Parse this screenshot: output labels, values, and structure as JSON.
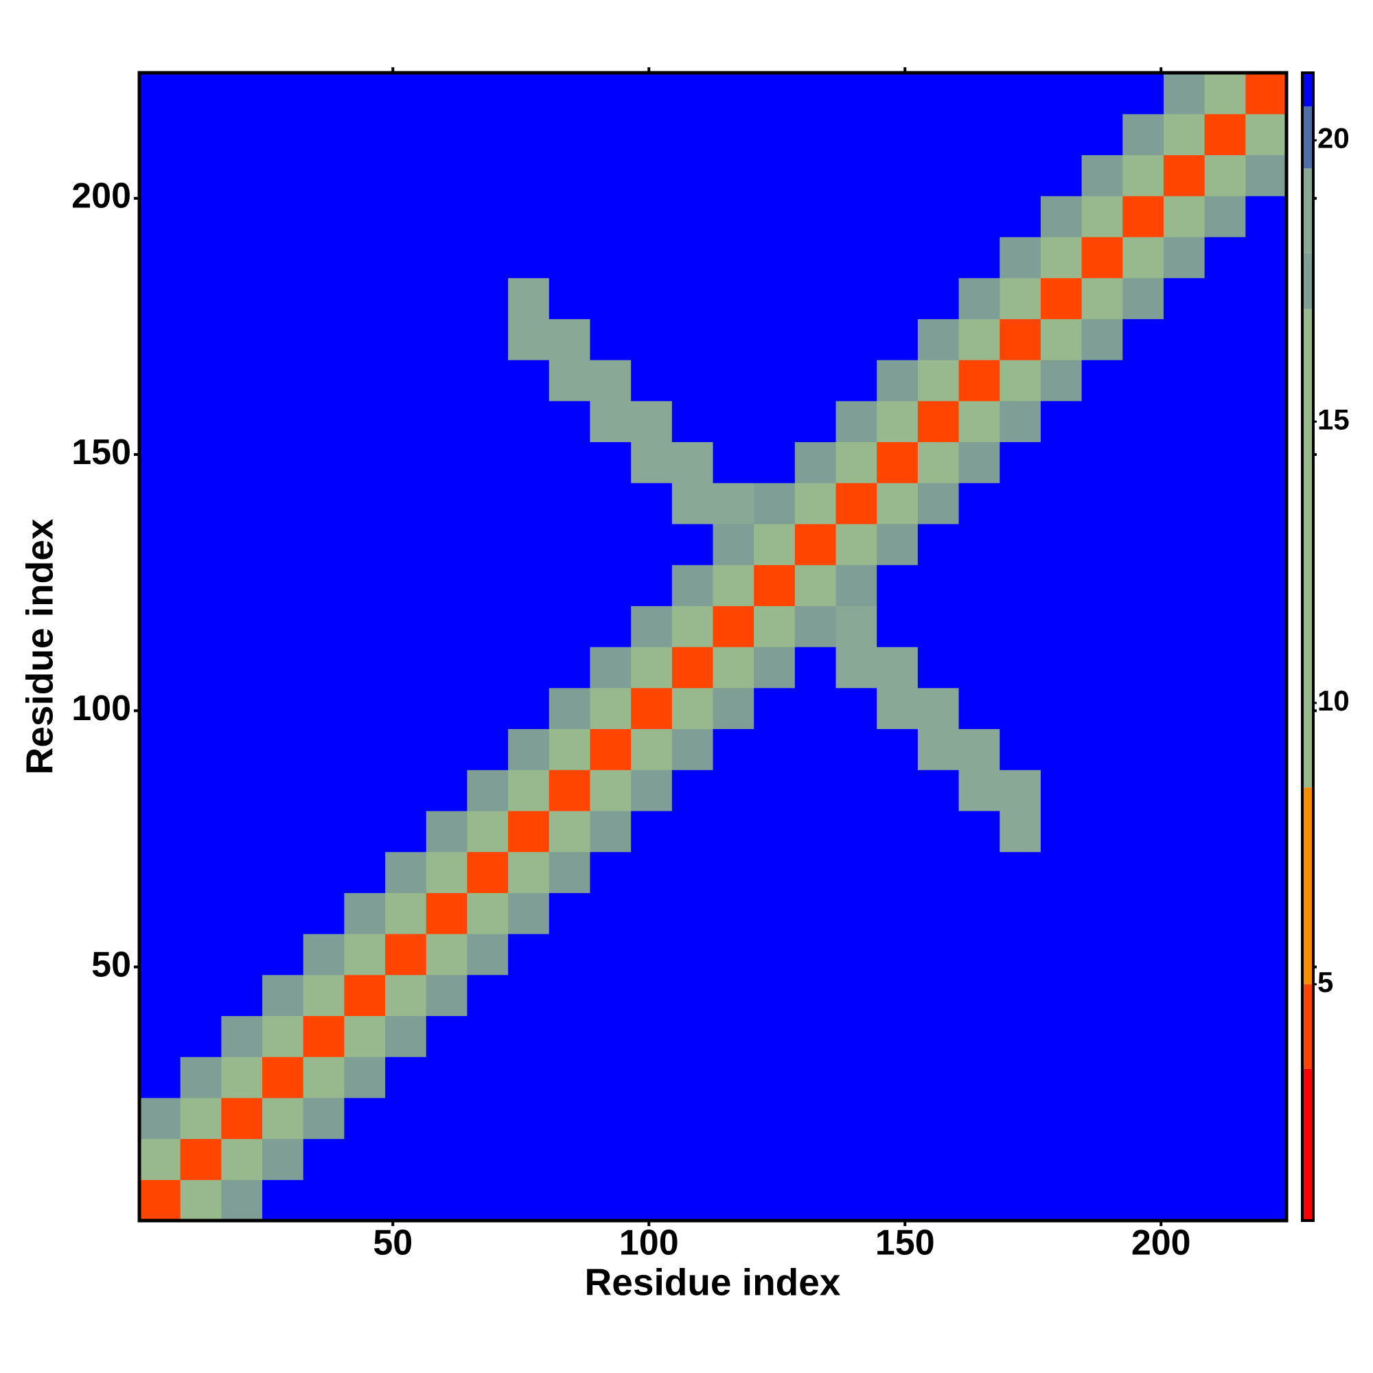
{
  "chart_data": {
    "type": "heatmap",
    "xlabel": "Residue index",
    "ylabel": "Residue index",
    "x": [
      4.5,
      12.5,
      20.5,
      28.5,
      36.5,
      44.5,
      52.5,
      60.5,
      68.5,
      76.5,
      84.5,
      92.5,
      100.5,
      108.5,
      116.5,
      124.5,
      132.5,
      140.5,
      148.5,
      156.5,
      164.5,
      172.5,
      180.5,
      188.5,
      196.5,
      204.5,
      212.5,
      220.5
    ],
    "y": [
      4.5,
      12.5,
      20.5,
      28.5,
      36.5,
      44.5,
      52.5,
      60.5,
      68.5,
      76.5,
      84.5,
      92.5,
      100.5,
      108.5,
      116.5,
      124.5,
      132.5,
      140.5,
      148.5,
      156.5,
      164.5,
      172.5,
      180.5,
      188.5,
      196.5,
      204.5,
      212.5,
      220.5
    ],
    "z": [
      [
        4,
        11,
        17,
        21,
        21,
        21,
        21,
        21,
        21,
        21,
        21,
        21,
        21,
        21,
        21,
        21,
        21,
        21,
        21,
        21,
        21,
        21,
        21,
        21,
        21,
        21,
        21,
        21
      ],
      [
        11,
        4,
        11,
        17,
        21,
        21,
        21,
        21,
        21,
        21,
        21,
        21,
        21,
        21,
        21,
        21,
        21,
        21,
        21,
        21,
        21,
        21,
        21,
        21,
        21,
        21,
        21,
        21
      ],
      [
        17,
        11,
        4,
        11,
        17,
        21,
        21,
        21,
        21,
        21,
        21,
        21,
        21,
        21,
        21,
        21,
        21,
        21,
        21,
        21,
        21,
        21,
        21,
        21,
        21,
        21,
        21,
        21
      ],
      [
        21,
        17,
        11,
        4,
        11,
        17,
        21,
        21,
        21,
        21,
        21,
        21,
        21,
        21,
        21,
        21,
        21,
        21,
        21,
        21,
        21,
        21,
        21,
        21,
        21,
        21,
        21,
        21
      ],
      [
        21,
        21,
        17,
        11,
        4,
        11,
        17,
        21,
        21,
        21,
        21,
        21,
        21,
        21,
        21,
        21,
        21,
        21,
        21,
        21,
        21,
        21,
        21,
        21,
        21,
        21,
        21,
        21
      ],
      [
        21,
        21,
        21,
        17,
        11,
        4,
        11,
        17,
        21,
        21,
        21,
        21,
        21,
        21,
        21,
        21,
        21,
        21,
        21,
        21,
        21,
        21,
        21,
        21,
        21,
        21,
        21,
        21
      ],
      [
        21,
        21,
        21,
        21,
        17,
        11,
        4,
        11,
        17,
        21,
        21,
        21,
        21,
        21,
        21,
        21,
        21,
        21,
        21,
        21,
        21,
        21,
        21,
        21,
        21,
        21,
        21,
        21
      ],
      [
        21,
        21,
        21,
        21,
        21,
        17,
        11,
        4,
        11,
        17,
        21,
        21,
        21,
        21,
        21,
        21,
        21,
        21,
        21,
        21,
        21,
        21,
        21,
        21,
        21,
        21,
        21,
        21
      ],
      [
        21,
        21,
        21,
        21,
        21,
        21,
        17,
        11,
        4,
        11,
        17,
        21,
        21,
        21,
        21,
        21,
        21,
        21,
        21,
        21,
        21,
        21,
        21,
        21,
        21,
        21,
        21,
        21
      ],
      [
        21,
        21,
        21,
        21,
        21,
        21,
        21,
        17,
        11,
        4,
        11,
        17,
        21,
        21,
        21,
        21,
        21,
        21,
        21,
        21,
        21,
        18,
        21,
        21,
        21,
        21,
        21,
        21
      ],
      [
        21,
        21,
        21,
        21,
        21,
        21,
        21,
        21,
        17,
        11,
        4,
        11,
        17,
        21,
        21,
        21,
        21,
        21,
        21,
        21,
        18,
        18,
        21,
        21,
        21,
        21,
        21,
        21
      ],
      [
        21,
        21,
        21,
        21,
        21,
        21,
        21,
        21,
        21,
        17,
        11,
        4,
        11,
        17,
        21,
        21,
        21,
        21,
        21,
        18,
        18,
        21,
        21,
        21,
        21,
        21,
        21,
        21
      ],
      [
        21,
        21,
        21,
        21,
        21,
        21,
        21,
        21,
        21,
        21,
        17,
        11,
        4,
        11,
        17,
        21,
        21,
        21,
        18,
        18,
        21,
        21,
        21,
        21,
        21,
        21,
        21,
        21
      ],
      [
        21,
        21,
        21,
        21,
        21,
        21,
        21,
        21,
        21,
        21,
        21,
        17,
        11,
        4,
        11,
        17,
        21,
        18,
        18,
        21,
        21,
        21,
        21,
        21,
        21,
        21,
        21,
        21
      ],
      [
        21,
        21,
        21,
        21,
        21,
        21,
        21,
        21,
        21,
        21,
        21,
        21,
        17,
        11,
        4,
        11,
        17,
        18,
        21,
        21,
        21,
        21,
        21,
        21,
        21,
        21,
        21,
        21
      ],
      [
        21,
        21,
        21,
        21,
        21,
        21,
        21,
        21,
        21,
        21,
        21,
        21,
        21,
        17,
        11,
        4,
        11,
        17,
        21,
        21,
        21,
        21,
        21,
        21,
        21,
        21,
        21,
        21
      ],
      [
        21,
        21,
        21,
        21,
        21,
        21,
        21,
        21,
        21,
        21,
        21,
        21,
        21,
        21,
        17,
        11,
        4,
        11,
        17,
        21,
        21,
        21,
        21,
        21,
        21,
        21,
        21,
        21
      ],
      [
        21,
        21,
        21,
        21,
        21,
        21,
        21,
        21,
        21,
        21,
        21,
        21,
        21,
        18,
        18,
        17,
        11,
        4,
        11,
        17,
        21,
        21,
        21,
        21,
        21,
        21,
        21,
        21
      ],
      [
        21,
        21,
        21,
        21,
        21,
        21,
        21,
        21,
        21,
        21,
        21,
        21,
        18,
        18,
        21,
        21,
        17,
        11,
        4,
        11,
        17,
        21,
        21,
        21,
        21,
        21,
        21,
        21
      ],
      [
        21,
        21,
        21,
        21,
        21,
        21,
        21,
        21,
        21,
        21,
        21,
        18,
        18,
        21,
        21,
        21,
        21,
        17,
        11,
        4,
        11,
        17,
        21,
        21,
        21,
        21,
        21,
        21
      ],
      [
        21,
        21,
        21,
        21,
        21,
        21,
        21,
        21,
        21,
        21,
        18,
        18,
        21,
        21,
        21,
        21,
        21,
        21,
        17,
        11,
        4,
        11,
        17,
        21,
        21,
        21,
        21,
        21
      ],
      [
        21,
        21,
        21,
        21,
        21,
        21,
        21,
        21,
        21,
        18,
        18,
        21,
        21,
        21,
        21,
        21,
        21,
        21,
        21,
        17,
        11,
        4,
        11,
        17,
        21,
        21,
        21,
        21
      ],
      [
        21,
        21,
        21,
        21,
        21,
        21,
        21,
        21,
        21,
        18,
        21,
        21,
        21,
        21,
        21,
        21,
        21,
        21,
        21,
        21,
        17,
        11,
        4,
        11,
        17,
        21,
        21,
        21
      ],
      [
        21,
        21,
        21,
        21,
        21,
        21,
        21,
        21,
        21,
        21,
        21,
        21,
        21,
        21,
        21,
        21,
        21,
        21,
        21,
        21,
        21,
        17,
        11,
        4,
        11,
        17,
        21,
        21
      ],
      [
        21,
        21,
        21,
        21,
        21,
        21,
        21,
        21,
        21,
        21,
        21,
        21,
        21,
        21,
        21,
        21,
        21,
        21,
        21,
        21,
        21,
        21,
        17,
        11,
        4,
        11,
        17,
        21
      ],
      [
        21,
        21,
        21,
        21,
        21,
        21,
        21,
        21,
        21,
        21,
        21,
        21,
        21,
        21,
        21,
        21,
        21,
        21,
        21,
        21,
        21,
        21,
        21,
        17,
        11,
        4,
        11,
        17
      ],
      [
        21,
        21,
        21,
        21,
        21,
        21,
        21,
        21,
        21,
        21,
        21,
        21,
        21,
        21,
        21,
        21,
        21,
        21,
        21,
        21,
        21,
        21,
        21,
        21,
        17,
        11,
        4,
        11
      ],
      [
        21,
        21,
        21,
        21,
        21,
        21,
        21,
        21,
        21,
        21,
        21,
        21,
        21,
        21,
        21,
        21,
        21,
        21,
        21,
        21,
        21,
        21,
        21,
        21,
        21,
        17,
        11,
        4
      ]
    ],
    "xlim": [
      0.5,
      224.5
    ],
    "ylim": [
      0.5,
      224.5
    ],
    "xticks": [
      50,
      100,
      150,
      200
    ],
    "yticks": [
      50,
      100,
      150,
      200
    ],
    "zlim": [
      0.8,
      21.2
    ],
    "colorbar_ticks": [
      5,
      10,
      15,
      20
    ],
    "colorscale": [
      [
        0.8,
        "#ff0000"
      ],
      [
        3.5,
        "#ff4500"
      ],
      [
        5,
        "#ff8c00"
      ],
      [
        8.5,
        "#97b98d"
      ],
      [
        17,
        "#7f9e96"
      ],
      [
        18,
        "#8aa896"
      ],
      [
        19.5,
        "#4f6fa8"
      ],
      [
        20.6,
        "#0000ff"
      ]
    ]
  }
}
